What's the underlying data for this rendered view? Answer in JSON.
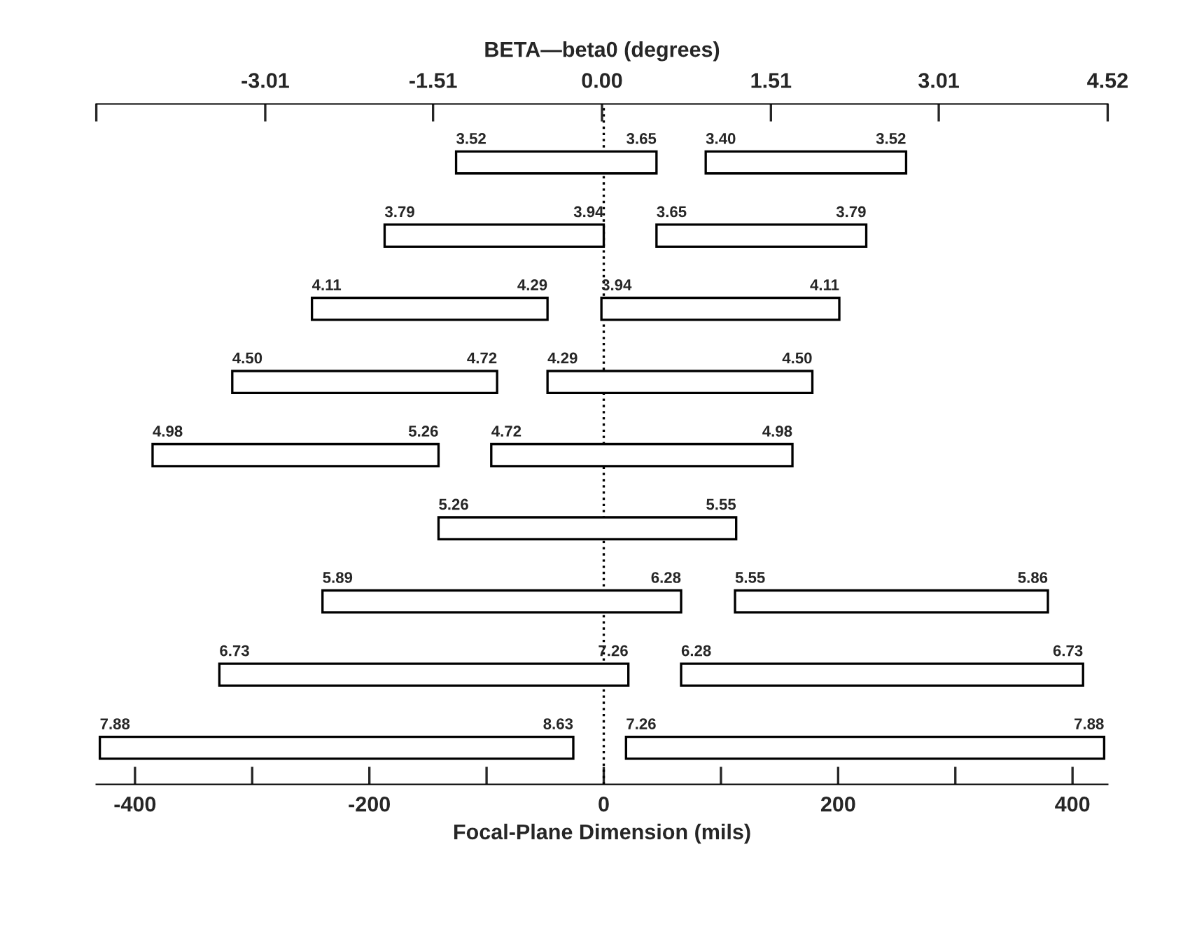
{
  "chart_data": {
    "type": "bar",
    "orientation": "horizontal",
    "xlabel": "Focal-Plane Dimension (mils)",
    "x2label": "BETA—beta0 (degrees)",
    "categories": [
      null,
      null,
      null,
      null,
      null,
      null,
      null,
      null,
      null
    ],
    "xlim": [
      -433,
      430
    ],
    "xticks": [
      -400,
      {
        "value": -300,
        "label": null
      },
      -200,
      {
        "value": -100,
        "label": null
      },
      0,
      {
        "value": 100,
        "label": null
      },
      200,
      {
        "value": 300,
        "label": null
      },
      400
    ],
    "x2lim": [
      -4.52,
      4.52
    ],
    "x2ticks": [
      {
        "value": -4.52,
        "label": null
      },
      -3.01,
      -1.51,
      {
        "value": 0,
        "label": "0.00"
      },
      1.51,
      3.01,
      4.52
    ],
    "series": [
      {
        "color": "#ffffff",
        "base": [
          -126,
          -187,
          -249,
          -317,
          -385,
          -141,
          -240,
          -328,
          -430
        ],
        "values": [
          171,
          187,
          201,
          226,
          244,
          254,
          306,
          349,
          404
        ]
      },
      {
        "color": "#ffffff",
        "base": [
          87,
          45,
          -2,
          -48,
          -96,
          null,
          112,
          66,
          19
        ],
        "values": [
          171,
          179,
          203,
          226,
          257,
          null,
          267,
          343,
          408
        ]
      }
    ],
    "ref_lines": [
      {
        "axis": "x",
        "value": 0,
        "color": "#000000",
        "line_style": "dotted"
      }
    ],
    "annotations": [
      "3.52",
      "3.65",
      "3.40",
      "3.52",
      "3.79",
      "3.94",
      "3.65",
      "3.79",
      "4.11",
      "4.29",
      "3.94",
      "4.11",
      "4.50",
      "4.72",
      "4.29",
      "4.50",
      "4.98",
      "5.26",
      "4.72",
      "4.98",
      "5.26",
      "5.55",
      "5.89",
      "6.28",
      "5.55",
      "5.86",
      "6.73",
      "7.26",
      "6.28",
      "6.73",
      "7.88",
      "8.63",
      "7.26",
      "7.88"
    ]
  }
}
